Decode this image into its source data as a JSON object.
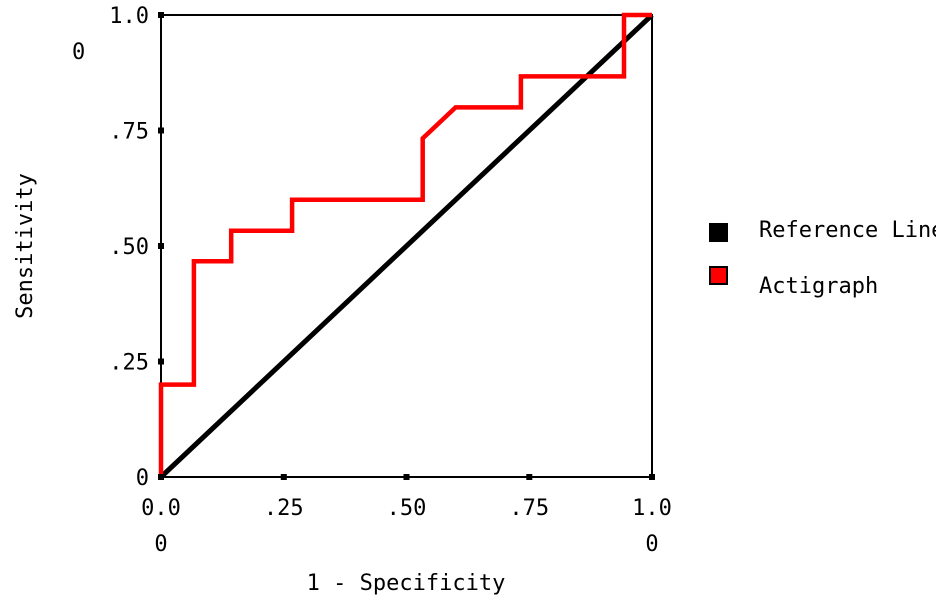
{
  "chart_data": {
    "type": "line",
    "title": "",
    "xlabel": "1 - Specificity",
    "ylabel": "Sensitivity",
    "xlim": [
      0,
      1
    ],
    "ylim": [
      0,
      1
    ],
    "grid": false,
    "legend_position": "right",
    "x_ticks": [
      {
        "value": 0,
        "lines": [
          "0.0",
          "0"
        ]
      },
      {
        "value": 0.25,
        "lines": [
          ".25"
        ]
      },
      {
        "value": 0.5,
        "lines": [
          ".50"
        ]
      },
      {
        "value": 0.75,
        "lines": [
          ".75"
        ]
      },
      {
        "value": 1,
        "lines": [
          "1.0",
          "0"
        ]
      }
    ],
    "y_ticks": [
      {
        "value": 0,
        "lines": [
          "0"
        ]
      },
      {
        "value": 0.25,
        "lines": [
          ".25"
        ]
      },
      {
        "value": 0.5,
        "lines": [
          ".50"
        ]
      },
      {
        "value": 0.75,
        "lines": [
          ".75"
        ]
      },
      {
        "value": 1,
        "lines": [
          "1.0",
          "0"
        ]
      }
    ],
    "series": [
      {
        "name": "Reference Line",
        "color": "#000000",
        "x": [
          0,
          1
        ],
        "y": [
          0,
          1
        ]
      },
      {
        "name": "Actigraph",
        "color": "#ff0000",
        "x": [
          0,
          0,
          0.067,
          0.067,
          0.143,
          0.143,
          0.267,
          0.267,
          0.533,
          0.533,
          0.6,
          0.733,
          0.733,
          0.943,
          0.943,
          1
        ],
        "y": [
          0,
          0.2,
          0.2,
          0.467,
          0.467,
          0.533,
          0.533,
          0.6,
          0.6,
          0.733,
          0.8,
          0.8,
          0.867,
          0.867,
          1,
          1
        ]
      }
    ]
  },
  "legend": {
    "items": [
      {
        "label": "Reference Line",
        "color": "#000000"
      },
      {
        "label": "Actigraph",
        "color": "#ff0000"
      }
    ]
  }
}
